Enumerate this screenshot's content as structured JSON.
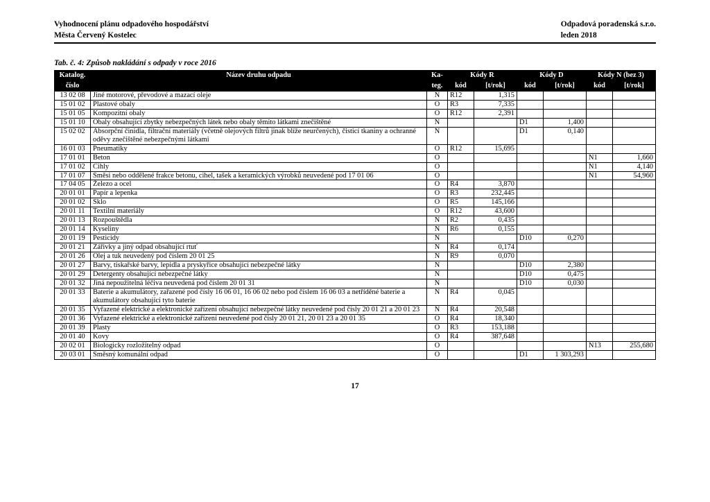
{
  "header": {
    "left1": "Vyhodnocení plánu odpadového hospodářství",
    "left2": "Města Červený Kostelec",
    "right1": "Odpadová poradenská s.r.o.",
    "right2": "leden 2018"
  },
  "tableTitle": "Tab. č. 4: Způsob nakládání s odpady v roce 2016",
  "columns": {
    "katalog1": "Katalog.",
    "katalog2": "číslo",
    "nazev": "Název druhu odpadu",
    "kateg1": "Ka-",
    "kateg2": "teg.",
    "kodyR": "Kódy R",
    "kodyD": "Kódy D",
    "kodyN": "Kódy N (bez 3)",
    "kod": "kód",
    "trok": "[t/rok]"
  },
  "rows": [
    {
      "k": "13 02 08",
      "n": "Jiné motorové, převodové a mazací oleje",
      "t": "N",
      "rk": "R12",
      "rv": "1,315",
      "dk": "",
      "dv": "",
      "nk": "",
      "nv": ""
    },
    {
      "k": "15 01 02",
      "n": "Plastové obaly",
      "t": "O",
      "rk": "R3",
      "rv": "7,335",
      "dk": "",
      "dv": "",
      "nk": "",
      "nv": ""
    },
    {
      "k": "15 01 05",
      "n": "Kompozitní obaly",
      "t": "O",
      "rk": "R12",
      "rv": "2,391",
      "dk": "",
      "dv": "",
      "nk": "",
      "nv": ""
    },
    {
      "k": "15 01 10",
      "n": "Obaly obsahující zbytky nebezpečných látek nebo obaly těmito látkami znečištěné",
      "t": "N",
      "rk": "",
      "rv": "",
      "dk": "D1",
      "dv": "1,400",
      "nk": "",
      "nv": ""
    },
    {
      "k": "15 02 02",
      "n": "Absorpční činidla, filtrační materiály (včetně olejových filtrů jinak blíže neurčených), čisticí tkaniny a ochranné oděvy znečištěné nebezpečnými látkami",
      "t": "N",
      "rk": "",
      "rv": "",
      "dk": "D1",
      "dv": "0,140",
      "nk": "",
      "nv": ""
    },
    {
      "k": "16 01 03",
      "n": "Pneumatiky",
      "t": "O",
      "rk": "R12",
      "rv": "15,695",
      "dk": "",
      "dv": "",
      "nk": "",
      "nv": ""
    },
    {
      "k": "17 01 01",
      "n": "Beton",
      "t": "O",
      "rk": "",
      "rv": "",
      "dk": "",
      "dv": "",
      "nk": "N1",
      "nv": "1,660"
    },
    {
      "k": "17 01 02",
      "n": "Cihly",
      "t": "O",
      "rk": "",
      "rv": "",
      "dk": "",
      "dv": "",
      "nk": "N1",
      "nv": "4,140"
    },
    {
      "k": "17 01 07",
      "n": "Směsi nebo oddělené frakce betonu, cihel, tašek a keramických výrobků neuvedené pod 17 01 06",
      "t": "O",
      "rk": "",
      "rv": "",
      "dk": "",
      "dv": "",
      "nk": "N1",
      "nv": "54,960"
    },
    {
      "k": "17 04 05",
      "n": "Železo a ocel",
      "t": "O",
      "rk": "R4",
      "rv": "3,870",
      "dk": "",
      "dv": "",
      "nk": "",
      "nv": ""
    },
    {
      "k": "20 01 01",
      "n": "Papír a lepenka",
      "t": "O",
      "rk": "R3",
      "rv": "232,445",
      "dk": "",
      "dv": "",
      "nk": "",
      "nv": ""
    },
    {
      "k": "20 01 02",
      "n": "Sklo",
      "t": "O",
      "rk": "R5",
      "rv": "145,166",
      "dk": "",
      "dv": "",
      "nk": "",
      "nv": ""
    },
    {
      "k": "20 01 11",
      "n": "Textilní materiály",
      "t": "O",
      "rk": "R12",
      "rv": "43,600",
      "dk": "",
      "dv": "",
      "nk": "",
      "nv": ""
    },
    {
      "k": "20 01 13",
      "n": "Rozpouštědla",
      "t": "N",
      "rk": "R2",
      "rv": "0,435",
      "dk": "",
      "dv": "",
      "nk": "",
      "nv": ""
    },
    {
      "k": "20 01 14",
      "n": "Kyseliny",
      "t": "N",
      "rk": "R6",
      "rv": "0,155",
      "dk": "",
      "dv": "",
      "nk": "",
      "nv": ""
    },
    {
      "k": "20 01 19",
      "n": "Pesticidy",
      "t": "N",
      "rk": "",
      "rv": "",
      "dk": "D10",
      "dv": "0,270",
      "nk": "",
      "nv": ""
    },
    {
      "k": "20 01 21",
      "n": "Zářivky a jiný odpad obsahující rtuť",
      "t": "N",
      "rk": "R4",
      "rv": "0,174",
      "dk": "",
      "dv": "",
      "nk": "",
      "nv": ""
    },
    {
      "k": "20 01 26",
      "n": "Olej a tuk neuvedený pod číslem 20 01 25",
      "t": "N",
      "rk": "R9",
      "rv": "0,070",
      "dk": "",
      "dv": "",
      "nk": "",
      "nv": ""
    },
    {
      "k": "20 01 27",
      "n": "Barvy, tiskařské barvy, lepidla a pryskyřice obsahující nebezpečné látky",
      "t": "N",
      "rk": "",
      "rv": "",
      "dk": "D10",
      "dv": "2,380",
      "nk": "",
      "nv": ""
    },
    {
      "k": "20 01 29",
      "n": "Detergenty obsahující nebezpečné látky",
      "t": "N",
      "rk": "",
      "rv": "",
      "dk": "D10",
      "dv": "0,475",
      "nk": "",
      "nv": ""
    },
    {
      "k": "20 01 32",
      "n": "Jiná nepoužitelná léčiva neuvedená pod číslem 20 01 31",
      "t": "N",
      "rk": "",
      "rv": "",
      "dk": "D10",
      "dv": "0,030",
      "nk": "",
      "nv": ""
    },
    {
      "k": "20 01 33",
      "n": "Baterie a akumulátory, zařazené pod čísly 16 06 01, 16 06 02 nebo pod číslem 16 06 03 a netříděné baterie a akumulátory obsahující tyto baterie",
      "t": "N",
      "rk": "R4",
      "rv": "0,045",
      "dk": "",
      "dv": "",
      "nk": "",
      "nv": ""
    },
    {
      "k": "20 01 35",
      "n": "Vyřazené elektrické a elektronické zařízení obsahující nebezpečné látky neuvedené pod čísly 20 01 21 a 20 01 23",
      "t": "N",
      "rk": "R4",
      "rv": "20,548",
      "dk": "",
      "dv": "",
      "nk": "",
      "nv": ""
    },
    {
      "k": "20 01 36",
      "n": "Vyřazené elektrické a elektronické zařízení neuvedené pod čísly 20 01 21, 20 01 23 a 20 01 35",
      "t": "O",
      "rk": "R4",
      "rv": "18,340",
      "dk": "",
      "dv": "",
      "nk": "",
      "nv": ""
    },
    {
      "k": "20 01 39",
      "n": "Plasty",
      "t": "O",
      "rk": "R3",
      "rv": "153,188",
      "dk": "",
      "dv": "",
      "nk": "",
      "nv": ""
    },
    {
      "k": "20 01 40",
      "n": "Kovy",
      "t": "O",
      "rk": "R4",
      "rv": "387,648",
      "dk": "",
      "dv": "",
      "nk": "",
      "nv": ""
    },
    {
      "k": "20 02 01",
      "n": "Biologicky rozložitelný odpad",
      "t": "O",
      "rk": "",
      "rv": "",
      "dk": "",
      "dv": "",
      "nk": "N13",
      "nv": "255,680"
    },
    {
      "k": "20 03 01",
      "n": "Směsný komunální odpad",
      "t": "O",
      "rk": "",
      "rv": "",
      "dk": "D1",
      "dv": "1 303,293",
      "nk": "",
      "nv": ""
    }
  ],
  "pageNumber": "17"
}
